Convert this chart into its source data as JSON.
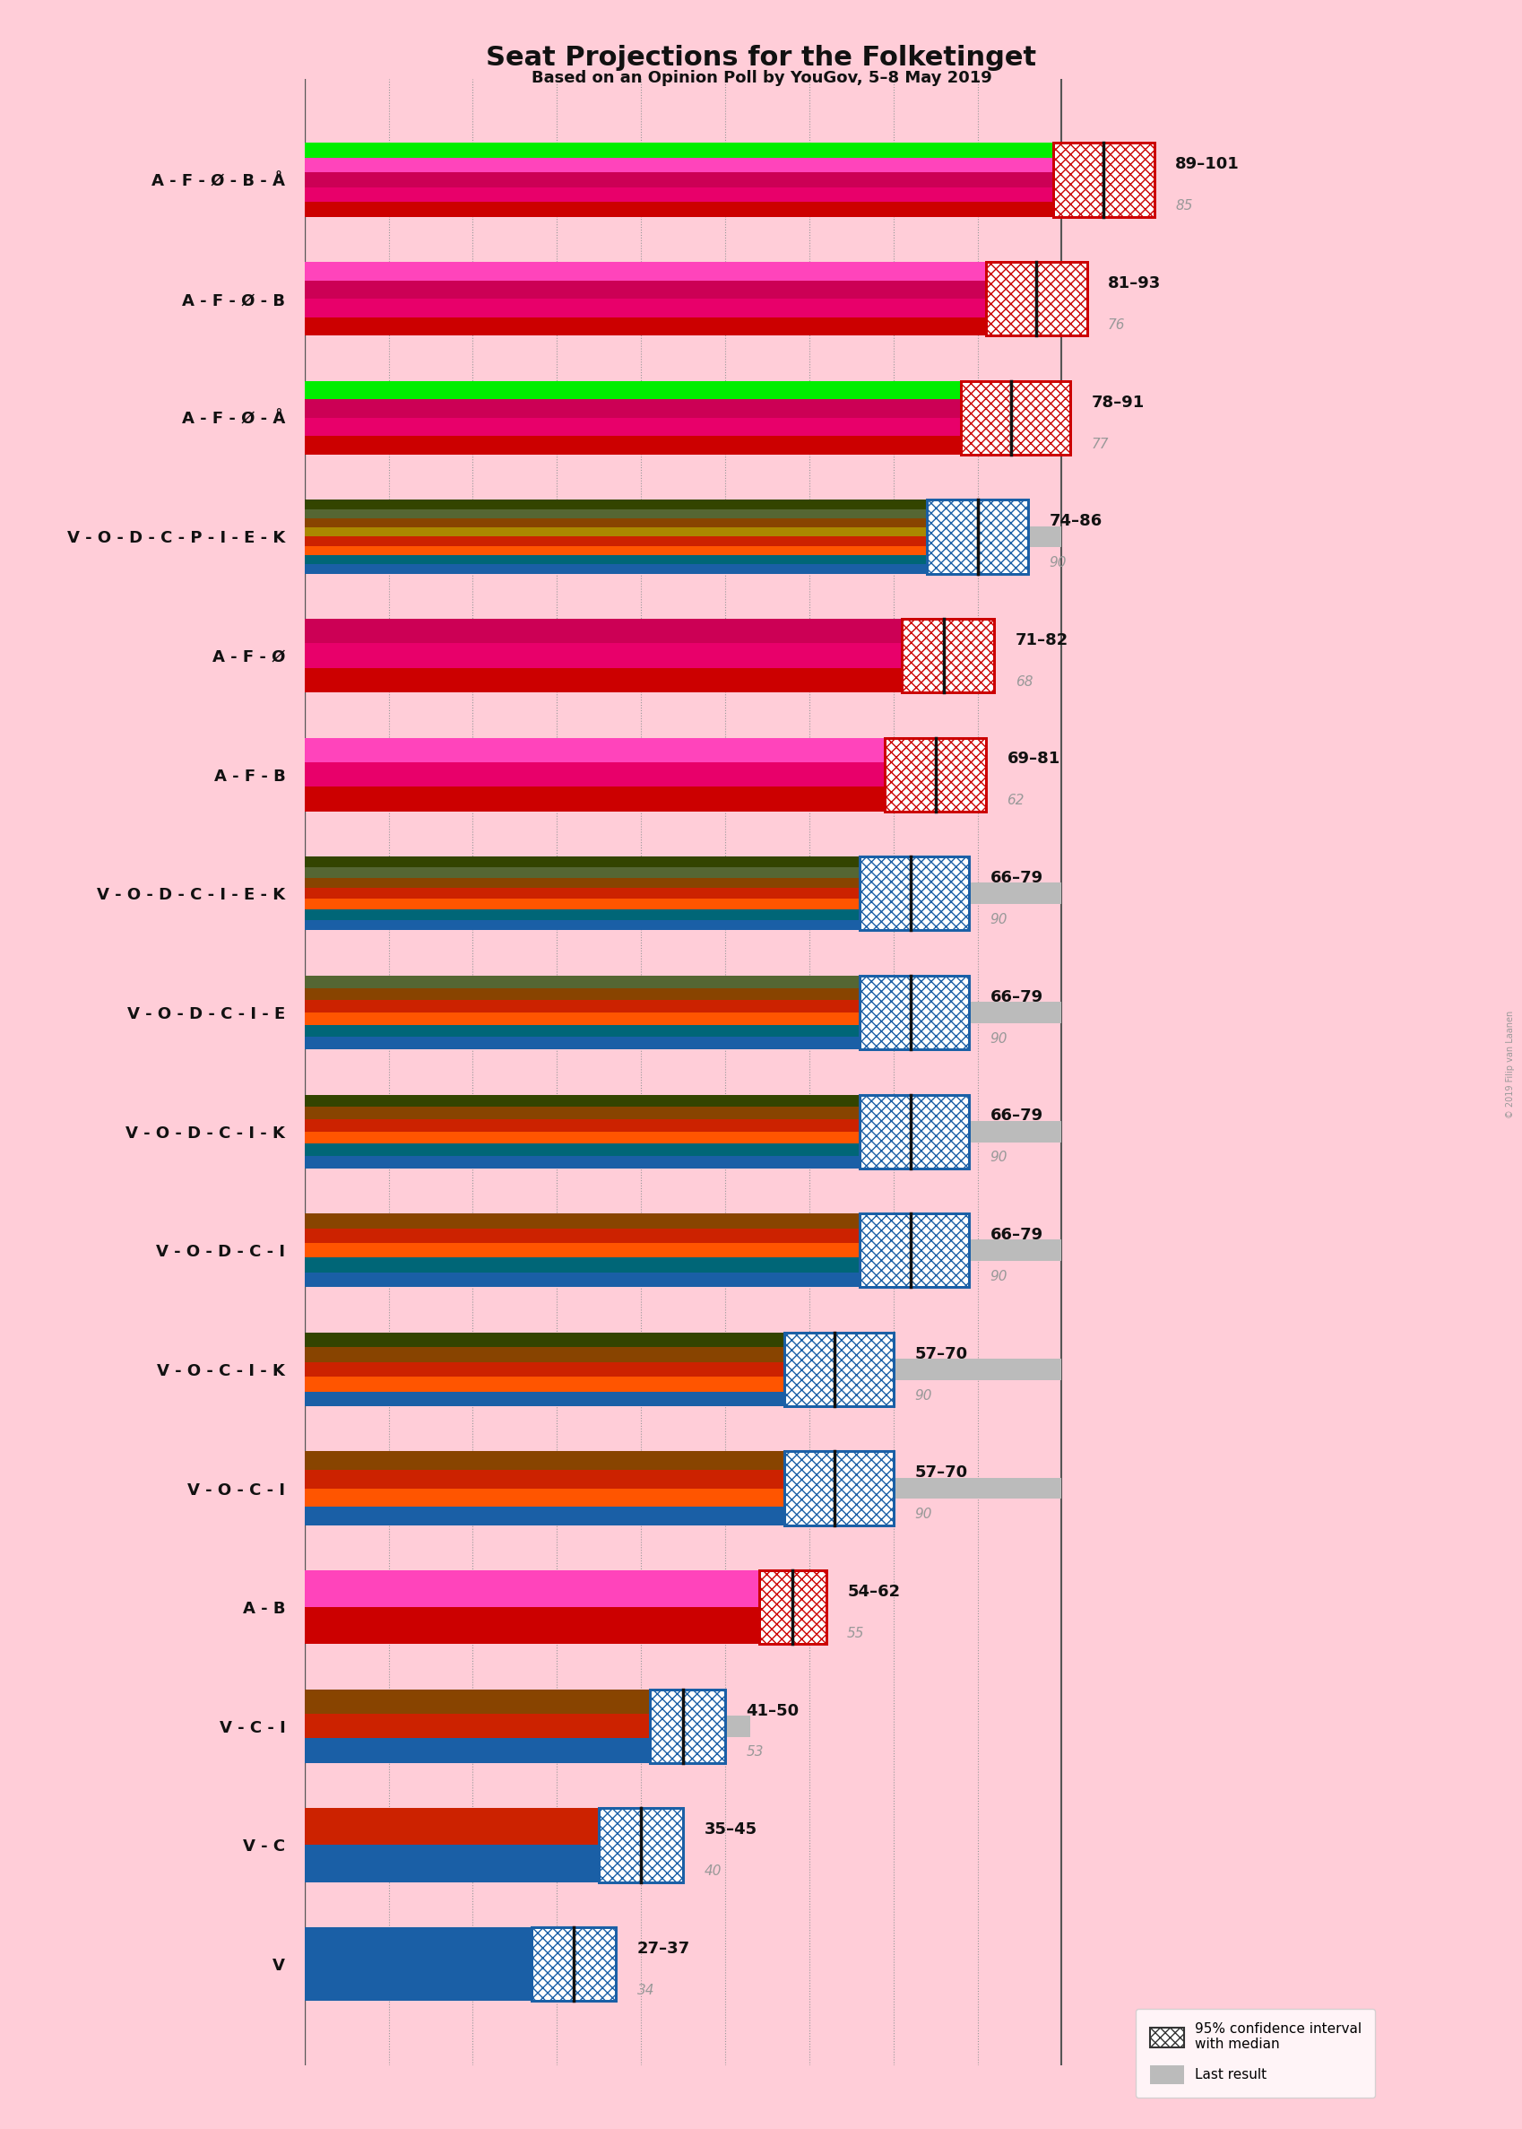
{
  "title": "Seat Projections for the Folketinget",
  "subtitle": "Based on an Opinion Poll by YouGov, 5–8 May 2019",
  "background_color": "#FFCDD8",
  "copyright": "© 2019 Filip van Laanen",
  "coalitions": [
    {
      "label": "A - F - Ø - B - Å",
      "low": 89,
      "high": 101,
      "median": 95,
      "last": 85,
      "underline": false,
      "type": "left",
      "stripes": [
        "#CC0000",
        "#E8006A",
        "#CC0055",
        "#FF44BB",
        "#00EE00"
      ]
    },
    {
      "label": "A - F - Ø - B",
      "low": 81,
      "high": 93,
      "median": 87,
      "last": 76,
      "underline": false,
      "type": "left",
      "stripes": [
        "#CC0000",
        "#E8006A",
        "#CC0055",
        "#FF44BB"
      ]
    },
    {
      "label": "A - F - Ø - Å",
      "low": 78,
      "high": 91,
      "median": 84,
      "last": 77,
      "underline": false,
      "type": "left",
      "stripes": [
        "#CC0000",
        "#E8006A",
        "#CC0055",
        "#00EE00"
      ]
    },
    {
      "label": "V - O - D - C - P - I - E - K",
      "low": 74,
      "high": 86,
      "median": 80,
      "last": 90,
      "underline": false,
      "type": "right",
      "stripes": [
        "#1A5FA6",
        "#006677",
        "#FF5500",
        "#CC2200",
        "#AA8800",
        "#884400",
        "#556633",
        "#334400"
      ]
    },
    {
      "label": "A - F - Ø",
      "low": 71,
      "high": 82,
      "median": 76,
      "last": 68,
      "underline": false,
      "type": "left",
      "stripes": [
        "#CC0000",
        "#E8006A",
        "#CC0055"
      ]
    },
    {
      "label": "A - F - B",
      "low": 69,
      "high": 81,
      "median": 75,
      "last": 62,
      "underline": false,
      "type": "left",
      "stripes": [
        "#CC0000",
        "#E8006A",
        "#FF44BB"
      ]
    },
    {
      "label": "V - O - D - C - I - E - K",
      "low": 66,
      "high": 79,
      "median": 72,
      "last": 90,
      "underline": false,
      "type": "right",
      "stripes": [
        "#1A5FA6",
        "#006677",
        "#FF5500",
        "#CC2200",
        "#884400",
        "#556633",
        "#334400"
      ]
    },
    {
      "label": "V - O - D - C - I - E",
      "low": 66,
      "high": 79,
      "median": 72,
      "last": 90,
      "underline": false,
      "type": "right",
      "stripes": [
        "#1A5FA6",
        "#006677",
        "#FF5500",
        "#CC2200",
        "#884400",
        "#556633"
      ]
    },
    {
      "label": "V - O - D - C - I - K",
      "low": 66,
      "high": 79,
      "median": 72,
      "last": 90,
      "underline": false,
      "type": "right",
      "stripes": [
        "#1A5FA6",
        "#006677",
        "#FF5500",
        "#CC2200",
        "#884400",
        "#334400"
      ]
    },
    {
      "label": "V - O - D - C - I",
      "low": 66,
      "high": 79,
      "median": 72,
      "last": 90,
      "underline": false,
      "type": "right",
      "stripes": [
        "#1A5FA6",
        "#006677",
        "#FF5500",
        "#CC2200",
        "#884400"
      ]
    },
    {
      "label": "V - O - C - I - K",
      "low": 57,
      "high": 70,
      "median": 63,
      "last": 90,
      "underline": false,
      "type": "right",
      "stripes": [
        "#1A5FA6",
        "#FF5500",
        "#CC2200",
        "#884400",
        "#334400"
      ]
    },
    {
      "label": "V - O - C - I",
      "low": 57,
      "high": 70,
      "median": 63,
      "last": 90,
      "underline": true,
      "type": "right",
      "stripes": [
        "#1A5FA6",
        "#FF5500",
        "#CC2200",
        "#884400"
      ]
    },
    {
      "label": "A - B",
      "low": 54,
      "high": 62,
      "median": 58,
      "last": 55,
      "underline": false,
      "type": "left",
      "stripes": [
        "#CC0000",
        "#FF44BB"
      ]
    },
    {
      "label": "V - C - I",
      "low": 41,
      "high": 50,
      "median": 45,
      "last": 53,
      "underline": true,
      "type": "right",
      "stripes": [
        "#1A5FA6",
        "#CC2200",
        "#884400"
      ]
    },
    {
      "label": "V - C",
      "low": 35,
      "high": 45,
      "median": 40,
      "last": 40,
      "underline": false,
      "type": "right",
      "stripes": [
        "#1A5FA6",
        "#CC2200"
      ]
    },
    {
      "label": "V",
      "low": 27,
      "high": 37,
      "median": 32,
      "last": 34,
      "underline": false,
      "type": "right",
      "stripes": [
        "#1A5FA6"
      ]
    }
  ],
  "majority_line": 90,
  "xmax": 105
}
